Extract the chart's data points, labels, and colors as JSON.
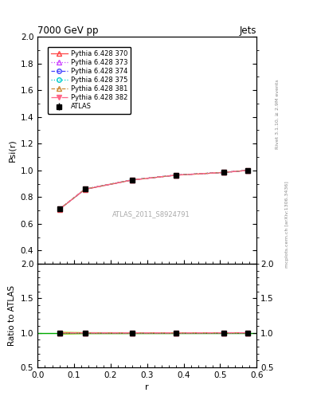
{
  "title_left": "7000 GeV pp",
  "title_right": "Jets",
  "ylabel_main": "Psi(r)",
  "ylabel_ratio": "Ratio to ATLAS",
  "xlabel": "r",
  "right_label_top": "Rivet 3.1.10, ≥ 2.9M events",
  "right_label_bot": "mcplots.cern.ch [arXiv:1306.3436]",
  "watermark": "ATLAS_2011_S8924791",
  "x_data": [
    0.06,
    0.13,
    0.26,
    0.38,
    0.51,
    0.575
  ],
  "atlas_y": [
    0.71,
    0.86,
    0.93,
    0.966,
    0.985,
    1.0
  ],
  "atlas_yerr": [
    0.012,
    0.006,
    0.005,
    0.004,
    0.003,
    0.002
  ],
  "pythia_y_370": [
    0.709,
    0.858,
    0.928,
    0.964,
    0.984,
    1.0
  ],
  "pythia_y_373": [
    0.71,
    0.859,
    0.929,
    0.965,
    0.985,
    1.0
  ],
  "pythia_y_374": [
    0.71,
    0.86,
    0.929,
    0.965,
    0.985,
    1.0
  ],
  "pythia_y_375": [
    0.71,
    0.86,
    0.93,
    0.965,
    0.985,
    1.0
  ],
  "pythia_y_381": [
    0.71,
    0.86,
    0.929,
    0.965,
    0.985,
    1.0
  ],
  "pythia_y_382": [
    0.71,
    0.86,
    0.929,
    0.965,
    0.985,
    1.0
  ],
  "color_370": "#ff4444",
  "color_373": "#cc44ff",
  "color_374": "#4444ff",
  "color_375": "#00cccc",
  "color_381": "#cc8833",
  "color_382": "#ff6688",
  "ylim_main": [
    0.3,
    2.0
  ],
  "ylim_ratio": [
    0.5,
    2.0
  ],
  "xlim": [
    0.0,
    0.6
  ],
  "band_color": "#aadd00",
  "band_color2": "#00aa00",
  "band_alpha": 0.6
}
